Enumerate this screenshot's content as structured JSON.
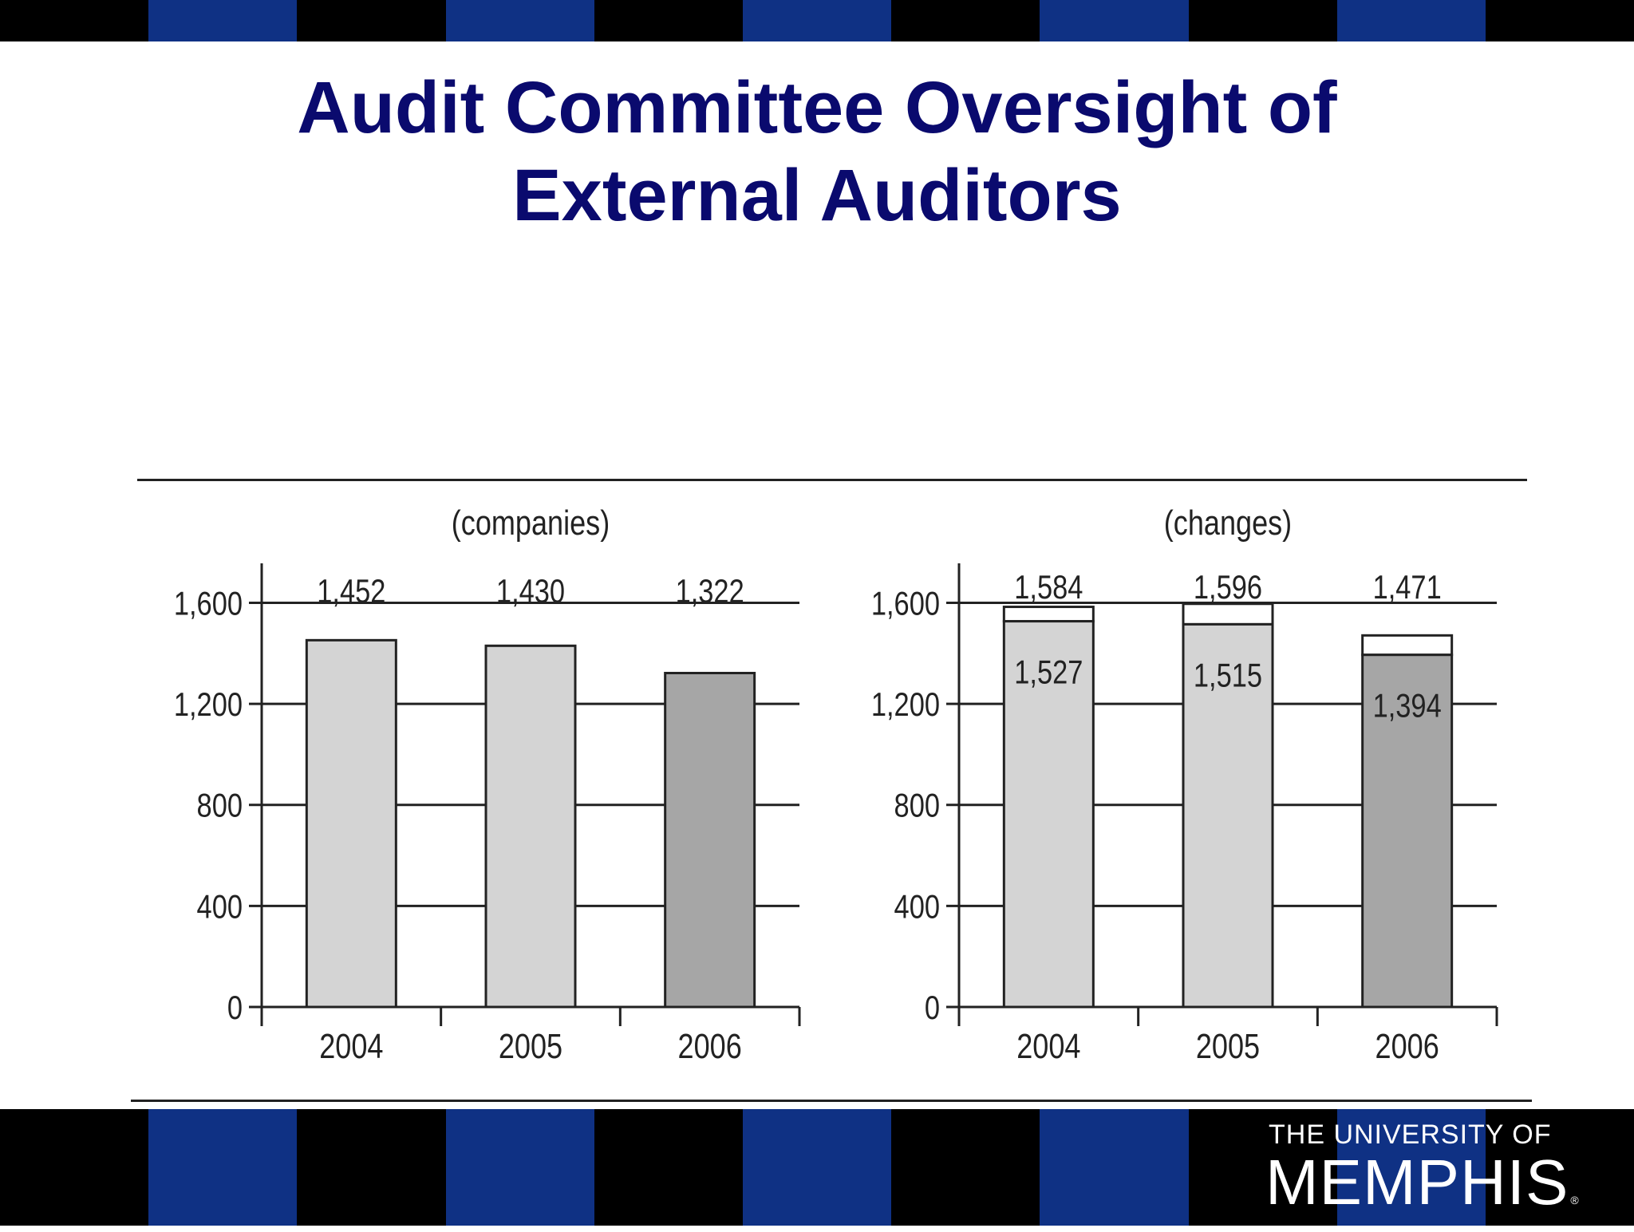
{
  "slide": {
    "title_line1": "Audit Committee Oversight of",
    "title_line2": "External Auditors"
  },
  "colors": {
    "title": "#0a0a6e",
    "stripe_blue": "#0f3184",
    "stripe_black": "#000000",
    "bar_light": "#d4d4d4",
    "bar_dark": "#a6a6a6",
    "axis": "#222222"
  },
  "logo": {
    "line1": "THE UNIVERSITY OF",
    "line2": "MEMPHIS",
    "mark": "®"
  },
  "chart_data": [
    {
      "type": "bar",
      "title": "(companies)",
      "categories": [
        "2004",
        "2005",
        "2006"
      ],
      "series": [
        {
          "values": [
            1452,
            1430,
            1322
          ]
        }
      ],
      "value_labels": [
        "1,452",
        "1,430",
        "1,322"
      ],
      "bar_shades": [
        "light",
        "light",
        "dark"
      ],
      "ylim": [
        0,
        1750
      ],
      "yticks": [
        0,
        400,
        800,
        1200,
        1600
      ],
      "ytick_labels": [
        "0",
        "400",
        "800",
        "1,200",
        "1,600"
      ],
      "grid": true
    },
    {
      "type": "bar",
      "stacked": true,
      "title": "(changes)",
      "categories": [
        "2004",
        "2005",
        "2006"
      ],
      "series": [
        {
          "values": [
            1527,
            1515,
            1394
          ]
        },
        {
          "values": [
            57,
            81,
            77
          ]
        }
      ],
      "totals": [
        1584,
        1596,
        1471
      ],
      "total_labels": [
        "1,584",
        "1,596",
        "1,471"
      ],
      "inner_labels": [
        "1,527",
        "1,515",
        "1,394"
      ],
      "bar_shades": [
        "light",
        "light",
        "dark"
      ],
      "ylim": [
        0,
        1750
      ],
      "yticks": [
        0,
        400,
        800,
        1200,
        1600
      ],
      "ytick_labels": [
        "0",
        "400",
        "800",
        "1,200",
        "1,600"
      ],
      "grid": true
    }
  ]
}
